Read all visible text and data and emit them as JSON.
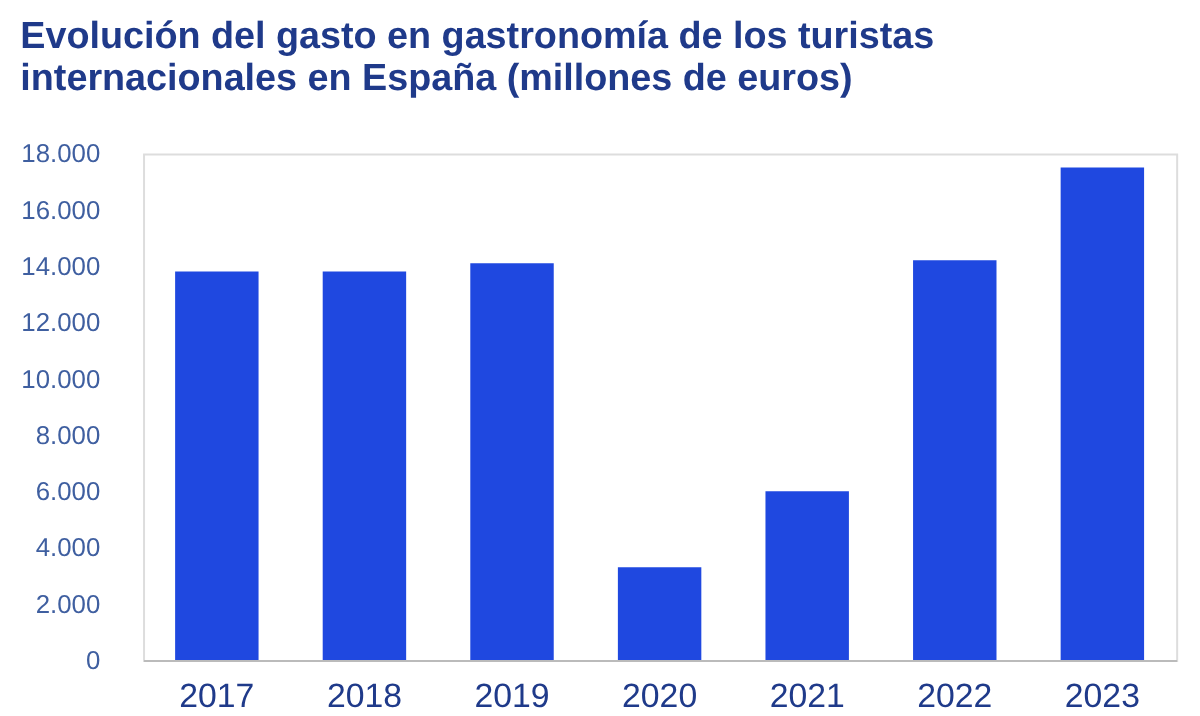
{
  "chart_data": {
    "type": "bar",
    "title": [
      "Evolución del gasto en gastronomía de los turistas",
      "internacionales en España (millones de euros)"
    ],
    "categories": [
      "2017",
      "2018",
      "2019",
      "2020",
      "2021",
      "2022",
      "2023"
    ],
    "values": [
      13800,
      13800,
      14100,
      3300,
      6000,
      14200,
      17500
    ],
    "color": "#1f48e0",
    "ylim": [
      0,
      18000
    ],
    "yticks": [
      {
        "value": 0,
        "label": "0"
      },
      {
        "value": 2000,
        "label": "2.000"
      },
      {
        "value": 4000,
        "label": "4.000"
      },
      {
        "value": 6000,
        "label": "6.000"
      },
      {
        "value": 8000,
        "label": "8.000"
      },
      {
        "value": 10000,
        "label": "10.000"
      },
      {
        "value": 12000,
        "label": "12.000"
      },
      {
        "value": 14000,
        "label": "14.000"
      },
      {
        "value": 16000,
        "label": "16.000"
      },
      {
        "value": 18000,
        "label": "18.000"
      }
    ],
    "grid": false
  }
}
